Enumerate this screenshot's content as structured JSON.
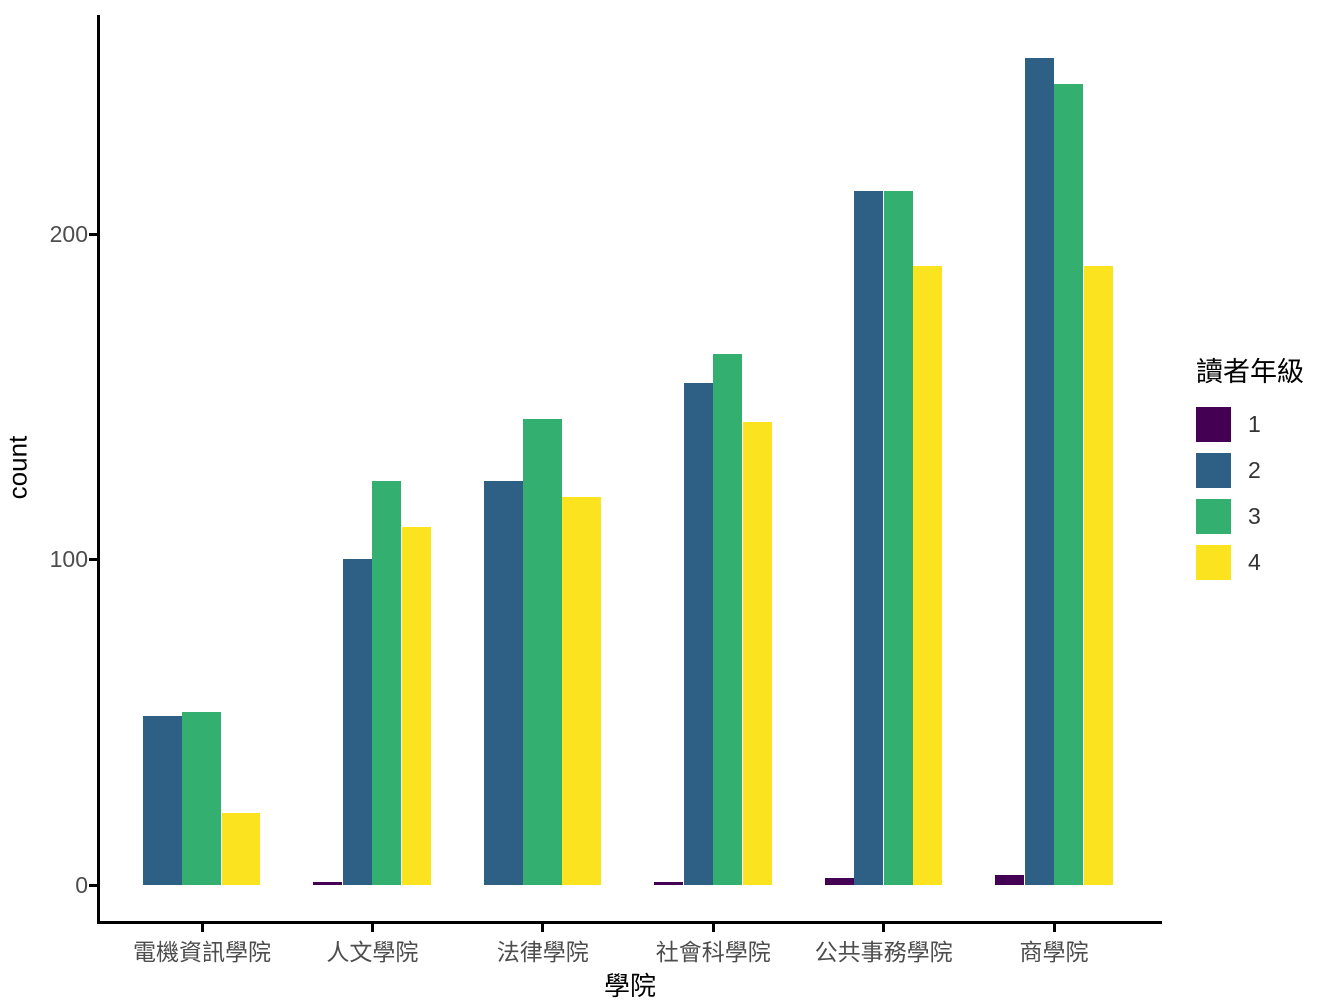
{
  "figure": {
    "background": "#ffffff",
    "axis_color": "#000000",
    "tick_label_color": "#4d4d4d"
  },
  "chart_data": {
    "type": "bar",
    "orientation": "vertical",
    "grouping": "dodge",
    "title": "",
    "xlabel": "學院",
    "ylabel": "count",
    "categories": [
      "電機資訊學院",
      "人文學院",
      "法律學院",
      "社會科學院",
      "公共事務學院",
      "商學院"
    ],
    "series": [
      {
        "name": "1",
        "color": "#440154",
        "values": [
          0,
          1,
          0,
          1,
          2,
          3
        ]
      },
      {
        "name": "2",
        "color": "#2D6084",
        "values": [
          52,
          100,
          124,
          154,
          213,
          254
        ]
      },
      {
        "name": "3",
        "color": "#33B06F",
        "values": [
          53,
          124,
          143,
          163,
          213,
          246
        ]
      },
      {
        "name": "4",
        "color": "#FCE320",
        "values": [
          22,
          110,
          119,
          142,
          190,
          190
        ]
      }
    ],
    "yticks": [
      0,
      100,
      200
    ],
    "ylim": [
      0,
      267
    ],
    "gridlines": false,
    "legend": {
      "title": "讀者年級",
      "position": "right",
      "entries": [
        "1",
        "2",
        "3",
        "4"
      ]
    }
  }
}
